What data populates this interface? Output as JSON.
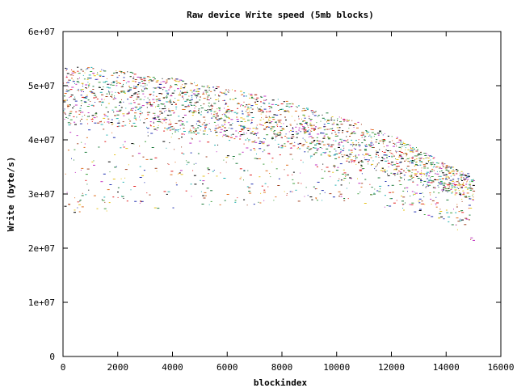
{
  "chart_data": {
    "type": "scatter",
    "title": "Raw device Write speed (5mb blocks)",
    "xlabel": "blockindex",
    "ylabel": "Write (byte/s)",
    "xlim": [
      0,
      16000
    ],
    "ylim": [
      0,
      60000000
    ],
    "x_ticks": [
      0,
      2000,
      4000,
      6000,
      8000,
      10000,
      12000,
      14000,
      16000
    ],
    "x_tick_labels": [
      "0",
      "2000",
      "4000",
      "6000",
      "8000",
      "10000",
      "12000",
      "14000",
      "16000"
    ],
    "y_ticks": [
      0,
      10000000,
      20000000,
      30000000,
      40000000,
      50000000,
      60000000
    ],
    "y_tick_labels": [
      "0",
      "1e+07",
      "2e+07",
      "3e+07",
      "4e+07",
      "5e+07",
      "6e+07"
    ],
    "grid": false,
    "legend": "none",
    "point_colors": [
      "#1a7a3a",
      "#e6c21a",
      "#2030b0",
      "#c030c0",
      "#20b0b0",
      "#e07020",
      "#a04020",
      "#40a040",
      "#000000",
      "#e02020"
    ],
    "x_range": [
      0,
      15000
    ],
    "series": [
      {
        "x": [
          0,
          1000,
          2000,
          3000,
          4000,
          5000,
          6000,
          7000,
          8000,
          9000,
          10000,
          11000,
          12000,
          13000,
          14000,
          15000
        ],
        "values": [
          53500000,
          53500000,
          53000000,
          52000000,
          51500000,
          50500000,
          49500000,
          48500000,
          47500000,
          46000000,
          44500000,
          43000000,
          41000000,
          38500000,
          35500000,
          33500000
        ]
      },
      {
        "x": [
          0,
          1000,
          2000,
          3000,
          4000,
          5000,
          6000,
          7000,
          8000,
          9000,
          10000,
          11000,
          12000,
          13000,
          14000,
          15000
        ],
        "values": [
          43000000,
          43000000,
          42500000,
          42000000,
          41500000,
          41000000,
          40500000,
          39500000,
          38500000,
          37500000,
          36500000,
          35000000,
          33500000,
          32000000,
          30500000,
          28500000
        ]
      },
      {
        "x": [
          0,
          1000,
          2000,
          3000,
          4000,
          5000,
          6000,
          7000,
          8000,
          9000,
          10000,
          11000,
          12000,
          13000,
          14000,
          15000
        ],
        "values": [
          26000000,
          26500000,
          27000000,
          27000000,
          27500000,
          28000000,
          28000000,
          28000000,
          28500000,
          28500000,
          28500000,
          28000000,
          27500000,
          26500000,
          25000000,
          21000000
        ]
      }
    ]
  }
}
